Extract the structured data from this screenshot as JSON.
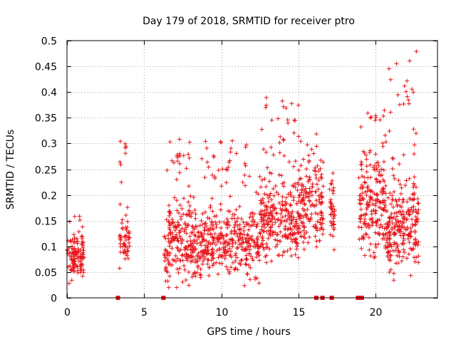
{
  "chart_data": {
    "type": "scatter",
    "title": "Day 179 of 2018, SRMTID for receiver ptro",
    "xlabel": "GPS time / hours",
    "ylabel": "SRMTID / TECUs",
    "xlim": [
      0,
      24
    ],
    "ylim": [
      0,
      0.5
    ],
    "x_ticks": [
      0,
      5,
      10,
      15,
      20
    ],
    "x_tick_labels": [
      "0",
      "5",
      "10",
      "15",
      "20"
    ],
    "y_ticks": [
      0,
      0.05,
      0.1,
      0.15,
      0.2,
      0.25,
      0.3,
      0.35,
      0.4,
      0.45,
      0.5
    ],
    "y_tick_labels": [
      "0",
      "0.05",
      "0.1",
      "0.15",
      "0.2",
      "0.25",
      "0.3",
      "0.35",
      "0.4",
      "0.45",
      "0.5"
    ],
    "grid": true,
    "marker": "plus",
    "color": "#e8151a",
    "zero_markers": {
      "marker": "square",
      "x": [
        3.3,
        6.25,
        16.15,
        16.55,
        17.15,
        18.85,
        19.1
      ]
    },
    "clusters": [
      {
        "x_range": [
          0.0,
          1.1
        ],
        "y_min": 0.02,
        "y_max": 0.16,
        "y_center": 0.08,
        "density": 120
      },
      {
        "x_range": [
          3.4,
          4.05
        ],
        "y_min": 0.04,
        "y_max": 0.31,
        "y_center": 0.11,
        "density": 60
      },
      {
        "x_range": [
          6.3,
          6.6
        ],
        "y_min": 0.0,
        "y_max": 0.32,
        "y_center": 0.07,
        "density": 30
      },
      {
        "x_range": [
          6.6,
          9.0
        ],
        "y_min": 0.02,
        "y_max": 0.32,
        "y_center": 0.11,
        "density": 260
      },
      {
        "x_range": [
          9.0,
          12.5
        ],
        "y_min": 0.02,
        "y_max": 0.31,
        "y_center": 0.1,
        "density": 330
      },
      {
        "x_range": [
          12.5,
          15.0
        ],
        "y_min": 0.05,
        "y_max": 0.39,
        "y_center": 0.15,
        "density": 280
      },
      {
        "x_range": [
          15.0,
          16.6
        ],
        "y_min": 0.07,
        "y_max": 0.32,
        "y_center": 0.18,
        "density": 170
      },
      {
        "x_range": [
          17.0,
          17.35
        ],
        "y_min": 0.08,
        "y_max": 0.28,
        "y_center": 0.17,
        "density": 40
      },
      {
        "x_range": [
          18.9,
          20.6
        ],
        "y_min": 0.06,
        "y_max": 0.38,
        "y_center": 0.18,
        "density": 200
      },
      {
        "x_range": [
          20.6,
          22.8
        ],
        "y_min": 0.03,
        "y_max": 0.49,
        "y_center": 0.14,
        "density": 280
      }
    ]
  }
}
